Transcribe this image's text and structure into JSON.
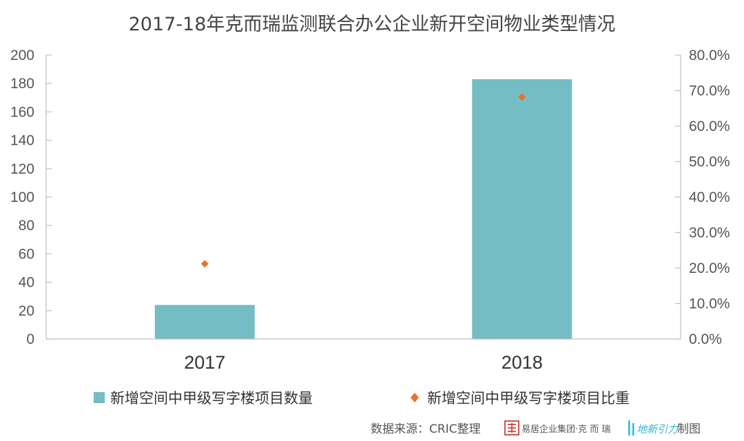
{
  "chart_data": {
    "type": "bar",
    "title": "2017-18年克而瑞监测联合办公企业新开空间物业类型情况",
    "categories": [
      "2017",
      "2018"
    ],
    "series": [
      {
        "name": "新增空间中甲级写字楼项目数量",
        "type": "bar",
        "axis": "left",
        "color": "#74bdc4",
        "values": [
          24,
          183
        ]
      },
      {
        "name": "新增空间中甲级写字楼项目比重",
        "type": "scatter",
        "axis": "right",
        "color": "#e8732a",
        "values": [
          21.2,
          68.2
        ]
      }
    ],
    "y_left": {
      "min": 0,
      "max": 200,
      "step": 20,
      "ticks": [
        "0",
        "20",
        "40",
        "60",
        "80",
        "100",
        "120",
        "140",
        "160",
        "180",
        "200"
      ]
    },
    "y_right": {
      "min": 0,
      "max": 80,
      "step": 10,
      "ticks": [
        "0.0%",
        "10.0%",
        "20.0%",
        "30.0%",
        "40.0%",
        "50.0%",
        "60.0%",
        "70.0%",
        "80.0%"
      ]
    },
    "grid": false,
    "legend_position": "bottom"
  },
  "footer": {
    "source_label": "数据来源：CRIC整理",
    "logo_icon": "yiju-seal-icon",
    "logo_text": "易居企业集团·克 而 瑞",
    "brand_icon": "dixinyinli-logo-icon",
    "brand_text": "地新引力",
    "suffix": "制图"
  }
}
